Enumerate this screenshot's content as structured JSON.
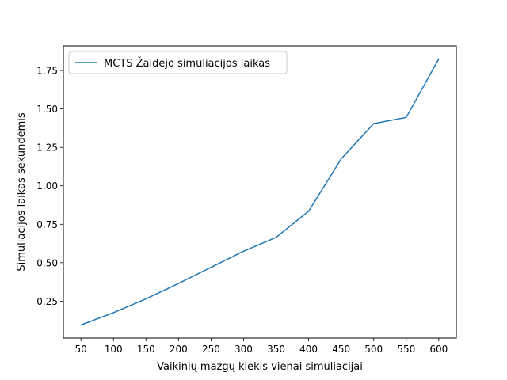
{
  "chart_data": {
    "type": "line",
    "title": "",
    "xlabel": "Vaikinių mazgų kiekis vienai simuliacijai",
    "ylabel": "Simuliacijos laikas sekundėmis",
    "x": [
      50,
      100,
      150,
      200,
      250,
      300,
      350,
      400,
      450,
      500,
      550,
      600
    ],
    "series": [
      {
        "name": "MCTS Žaidėjo simuliacijos laikas",
        "color": "#1f77b4",
        "values": [
          0.095,
          0.175,
          0.265,
          0.365,
          0.47,
          0.575,
          0.665,
          0.835,
          1.175,
          1.405,
          1.445,
          1.825
        ]
      }
    ],
    "xlim": [
      23,
      627
    ],
    "ylim": [
      0.01,
      1.91
    ],
    "xticks": [
      "50",
      "100",
      "150",
      "200",
      "250",
      "300",
      "350",
      "400",
      "450",
      "500",
      "550",
      "600"
    ],
    "yticks": [
      "0.25",
      "0.50",
      "0.75",
      "1.00",
      "1.25",
      "1.50",
      "1.75"
    ],
    "grid": false,
    "legend": "upper-left"
  }
}
